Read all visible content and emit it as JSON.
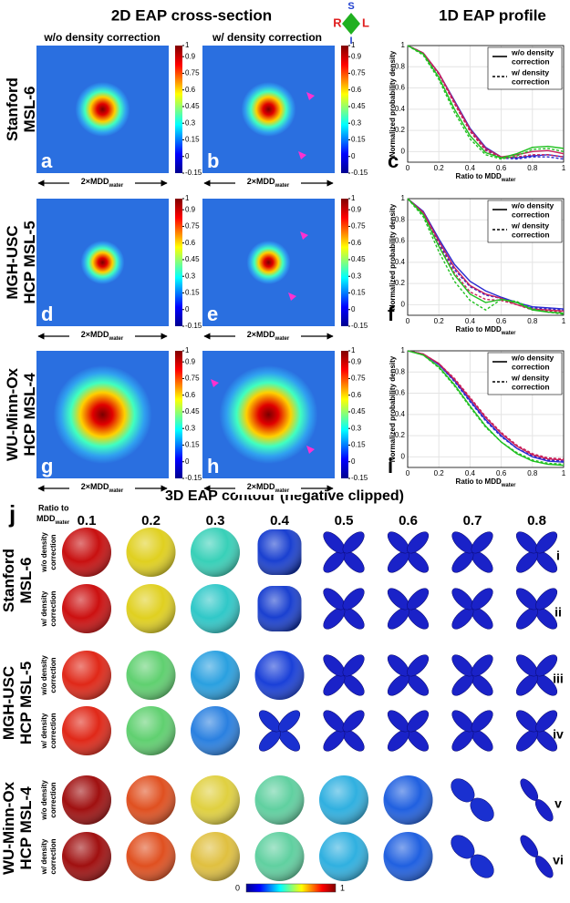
{
  "header": {
    "cross_section_title": "2D EAP cross-section",
    "profile_title": "1D EAP profile",
    "columns": [
      "w/o density correction",
      "w/ density correction"
    ],
    "orientation": {
      "top": "S",
      "left": "R",
      "right": "L",
      "bottom": "I"
    }
  },
  "rows": [
    {
      "name": [
        "Stanford",
        "MSL-6"
      ],
      "panel_labels": [
        "a",
        "b",
        "c"
      ]
    },
    {
      "name": [
        "MGH-USC",
        "HCP MSL-5"
      ],
      "panel_labels": [
        "d",
        "e",
        "f"
      ]
    },
    {
      "name": [
        "WU-Minn-Ox",
        "HCP MSL-4"
      ],
      "panel_labels": [
        "g",
        "h",
        "i"
      ]
    }
  ],
  "colorbar": {
    "ticks": [
      1,
      0.9,
      0.75,
      0.6,
      0.45,
      0.3,
      0.15,
      0,
      -0.15
    ]
  },
  "scale_label": {
    "text": "2×MDD",
    "sub": "water"
  },
  "chart_data": [
    {
      "type": "line",
      "x": [
        0,
        0.1,
        0.2,
        0.3,
        0.4,
        0.5,
        0.6,
        0.7,
        0.8,
        0.9,
        1
      ],
      "xlim": [
        0,
        1
      ],
      "xticks": [
        0,
        0.2,
        0.4,
        0.6,
        0.8,
        1
      ],
      "ylim": [
        -0.1,
        1
      ],
      "yticks": [
        0,
        0.2,
        0.4,
        0.6,
        0.8,
        1
      ],
      "grid": true,
      "xlabel": {
        "text": "Ratio to MDD",
        "sub": "water"
      },
      "ylabel": "Normalized probability density",
      "legend": [
        {
          "label": [
            "w/o density",
            "correction"
          ],
          "dash": false,
          "color": "#000000"
        },
        {
          "label": [
            "w/ density",
            "correction"
          ],
          "dash": true,
          "color": "#000000"
        }
      ],
      "series": [
        {
          "color": "#2a2ad0",
          "dash": false,
          "values": [
            1,
            0.93,
            0.74,
            0.48,
            0.22,
            0.04,
            -0.05,
            -0.06,
            -0.04,
            -0.03,
            -0.05
          ]
        },
        {
          "color": "#2a2ad0",
          "dash": true,
          "values": [
            1,
            0.93,
            0.73,
            0.46,
            0.2,
            0.02,
            -0.06,
            -0.07,
            -0.05,
            -0.05,
            -0.07
          ]
        },
        {
          "color": "#c8205a",
          "dash": false,
          "values": [
            1,
            0.93,
            0.74,
            0.47,
            0.21,
            0.03,
            -0.05,
            -0.03,
            0,
            0.01,
            -0.02
          ]
        },
        {
          "color": "#c8205a",
          "dash": true,
          "values": [
            1,
            0.93,
            0.73,
            0.45,
            0.19,
            0.01,
            -0.06,
            -0.05,
            -0.03,
            -0.03,
            -0.05
          ]
        },
        {
          "color": "#20c020",
          "dash": false,
          "values": [
            1,
            0.92,
            0.7,
            0.4,
            0.15,
            -0.01,
            -0.06,
            -0.02,
            0.04,
            0.05,
            0.03
          ]
        },
        {
          "color": "#20c020",
          "dash": true,
          "values": [
            1,
            0.91,
            0.68,
            0.37,
            0.12,
            -0.03,
            -0.07,
            -0.04,
            0.02,
            0.03,
            0
          ]
        }
      ]
    },
    {
      "type": "line",
      "x": [
        0,
        0.1,
        0.2,
        0.3,
        0.4,
        0.5,
        0.6,
        0.7,
        0.8,
        0.9,
        1
      ],
      "xlim": [
        0,
        1
      ],
      "xticks": [
        0,
        0.2,
        0.4,
        0.6,
        0.8,
        1
      ],
      "ylim": [
        -0.1,
        1
      ],
      "yticks": [
        0,
        0.2,
        0.4,
        0.6,
        0.8,
        1
      ],
      "grid": true,
      "xlabel": {
        "text": "Ratio to MDD",
        "sub": "water"
      },
      "ylabel": "Normalized probability density",
      "legend": [
        {
          "label": [
            "w/o density",
            "correction"
          ],
          "dash": false,
          "color": "#000000"
        },
        {
          "label": [
            "w/ density",
            "correction"
          ],
          "dash": true,
          "color": "#000000"
        }
      ],
      "series": [
        {
          "color": "#2a2ad0",
          "dash": false,
          "values": [
            1,
            0.88,
            0.62,
            0.38,
            0.22,
            0.13,
            0.07,
            0.02,
            -0.02,
            -0.03,
            -0.04
          ]
        },
        {
          "color": "#2a2ad0",
          "dash": true,
          "values": [
            1,
            0.87,
            0.58,
            0.33,
            0.17,
            0.09,
            0.06,
            0.02,
            -0.03,
            -0.04,
            -0.05
          ]
        },
        {
          "color": "#c8205a",
          "dash": false,
          "values": [
            1,
            0.87,
            0.6,
            0.35,
            0.18,
            0.1,
            0.06,
            0,
            -0.04,
            -0.05,
            -0.06
          ]
        },
        {
          "color": "#c8205a",
          "dash": true,
          "values": [
            1,
            0.86,
            0.56,
            0.3,
            0.12,
            0.05,
            0.04,
            0,
            -0.05,
            -0.06,
            -0.07
          ]
        },
        {
          "color": "#20c020",
          "dash": false,
          "values": [
            1,
            0.85,
            0.55,
            0.28,
            0.1,
            0.02,
            0.05,
            0.02,
            -0.05,
            -0.07,
            -0.08
          ]
        },
        {
          "color": "#20c020",
          "dash": true,
          "values": [
            1,
            0.83,
            0.5,
            0.22,
            0.04,
            -0.05,
            0.05,
            0.03,
            -0.04,
            -0.07,
            -0.09
          ]
        }
      ]
    },
    {
      "type": "line",
      "x": [
        0,
        0.1,
        0.2,
        0.3,
        0.4,
        0.5,
        0.6,
        0.7,
        0.8,
        0.9,
        1
      ],
      "xlim": [
        0,
        1
      ],
      "xticks": [
        0,
        0.2,
        0.4,
        0.6,
        0.8,
        1
      ],
      "ylim": [
        -0.1,
        1
      ],
      "yticks": [
        0,
        0.2,
        0.4,
        0.6,
        0.8,
        1
      ],
      "grid": true,
      "xlabel": {
        "text": "Ratio to MDD",
        "sub": "water"
      },
      "ylabel": "Normalized probability density",
      "legend": [
        {
          "label": [
            "w/o density",
            "correction"
          ],
          "dash": false,
          "color": "#000000"
        },
        {
          "label": [
            "w/ density",
            "correction"
          ],
          "dash": true,
          "color": "#000000"
        }
      ],
      "series": [
        {
          "color": "#2a2ad0",
          "dash": false,
          "values": [
            1,
            0.97,
            0.87,
            0.72,
            0.53,
            0.35,
            0.2,
            0.08,
            0,
            -0.04,
            -0.05
          ]
        },
        {
          "color": "#2a2ad0",
          "dash": true,
          "values": [
            1,
            0.97,
            0.87,
            0.71,
            0.52,
            0.34,
            0.19,
            0.08,
            0.01,
            -0.03,
            -0.04
          ]
        },
        {
          "color": "#c8205a",
          "dash": false,
          "values": [
            1,
            0.97,
            0.88,
            0.73,
            0.55,
            0.37,
            0.22,
            0.1,
            0.02,
            -0.02,
            -0.03
          ]
        },
        {
          "color": "#c8205a",
          "dash": true,
          "values": [
            1,
            0.97,
            0.88,
            0.74,
            0.56,
            0.38,
            0.23,
            0.11,
            0.03,
            -0.01,
            -0.02
          ]
        },
        {
          "color": "#20c020",
          "dash": false,
          "values": [
            1,
            0.96,
            0.85,
            0.68,
            0.48,
            0.29,
            0.14,
            0.03,
            -0.04,
            -0.07,
            -0.08
          ]
        },
        {
          "color": "#20c020",
          "dash": true,
          "values": [
            1,
            0.96,
            0.84,
            0.67,
            0.47,
            0.28,
            0.14,
            0.04,
            -0.03,
            -0.06,
            -0.07
          ]
        }
      ]
    }
  ],
  "section_j": {
    "label": "j",
    "title": "3D EAP contour (negative clipped)",
    "ratio_label": {
      "line1": "Ratio to",
      "line2": "MDD",
      "sub": "water"
    },
    "ratios": [
      0.1,
      0.2,
      0.3,
      0.4,
      0.5,
      0.6,
      0.7,
      0.8
    ],
    "groups": [
      {
        "name": [
          "Stanford",
          "MSL-6"
        ],
        "rows": [
          {
            "label": [
              "w/o density",
              "correction"
            ],
            "numeral": "i"
          },
          {
            "label": [
              "w/ density",
              "correction"
            ],
            "numeral": "ii"
          }
        ]
      },
      {
        "name": [
          "MGH-USC",
          "HCP MSL-5"
        ],
        "rows": [
          {
            "label": [
              "w/o density",
              "correction"
            ],
            "numeral": "iii"
          },
          {
            "label": [
              "w/ density",
              "correction"
            ],
            "numeral": "iv"
          }
        ]
      },
      {
        "name": [
          "WU-Minn-Ox",
          "HCP MSL-4"
        ],
        "rows": [
          {
            "label": [
              "w/o density",
              "correction"
            ],
            "numeral": "v"
          },
          {
            "label": [
              "w/ density",
              "correction"
            ],
            "numeral": "vi"
          }
        ]
      }
    ],
    "colorbar": {
      "min": 0,
      "max": 1
    }
  }
}
